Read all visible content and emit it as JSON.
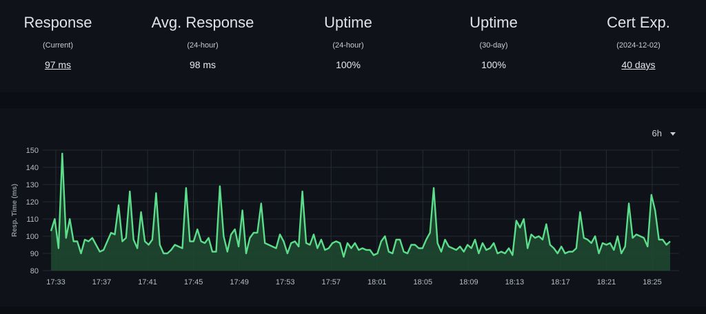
{
  "stats": [
    {
      "title": "Response",
      "sub": "(Current)",
      "value": "97 ms",
      "link": true
    },
    {
      "title": "Avg. Response",
      "sub": "(24-hour)",
      "value": "98 ms",
      "link": false
    },
    {
      "title": "Uptime",
      "sub": "(24-hour)",
      "value": "100%",
      "link": false
    },
    {
      "title": "Uptime",
      "sub": "(30-day)",
      "value": "100%",
      "link": false
    },
    {
      "title": "Cert Exp.",
      "sub": "(2024-12-02)",
      "value": "40 days",
      "link": true
    }
  ],
  "range_selector": {
    "value": "6h"
  },
  "colors": {
    "line": "#5cdd8b",
    "fill": "#1f4a30",
    "grid": "#262b33"
  },
  "chart_data": {
    "type": "area",
    "ylabel": "Resp. Time (ms)",
    "ylim": [
      80,
      150
    ],
    "yticks": [
      80,
      90,
      100,
      110,
      120,
      130,
      140,
      150
    ],
    "xticks": [
      "17:33",
      "17:37",
      "17:41",
      "17:45",
      "17:49",
      "17:53",
      "17:57",
      "18:01",
      "18:05",
      "18:09",
      "18:13",
      "18:17",
      "18:21",
      "18:25"
    ],
    "values": [
      103,
      110,
      93,
      148,
      99,
      110,
      97,
      97,
      90,
      98,
      97,
      99,
      95,
      91,
      92,
      97,
      102,
      101,
      118,
      97,
      99,
      126,
      98,
      93,
      114,
      97,
      95,
      98,
      125,
      95,
      90,
      90,
      92,
      95,
      94,
      93,
      128,
      97,
      97,
      104,
      97,
      96,
      99,
      91,
      91,
      129,
      100,
      91,
      101,
      104,
      94,
      115,
      90,
      99,
      102,
      102,
      119,
      96,
      95,
      94,
      93,
      101,
      97,
      90,
      96,
      97,
      94,
      126,
      96,
      95,
      101,
      93,
      98,
      92,
      93,
      96,
      97,
      96,
      88,
      96,
      93,
      96,
      92,
      93,
      92,
      92,
      89,
      90,
      97,
      100,
      91,
      90,
      98,
      98,
      91,
      90,
      95,
      95,
      93,
      93,
      98,
      102,
      128,
      96,
      91,
      98,
      94,
      93,
      92,
      94,
      91,
      95,
      93,
      98,
      90,
      96,
      92,
      93,
      96,
      90,
      91,
      90,
      93,
      89,
      109,
      105,
      110,
      93,
      101,
      99,
      100,
      98,
      107,
      95,
      93,
      90,
      94,
      90,
      91,
      91,
      93,
      114,
      99,
      98,
      96,
      100,
      90,
      96,
      95,
      96,
      92,
      100,
      90,
      94,
      119,
      99,
      101,
      100,
      99,
      94,
      124,
      115,
      98,
      98,
      95,
      97
    ]
  }
}
